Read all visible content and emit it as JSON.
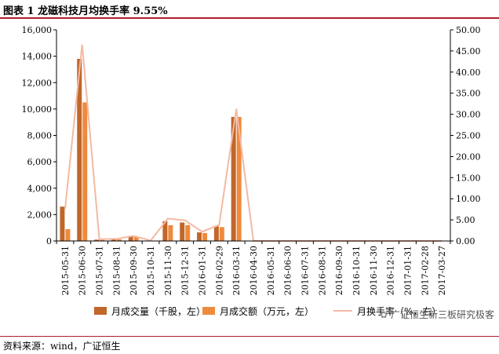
{
  "header": {
    "title": "图表 1  龙磁科技月均换手率 9.55%"
  },
  "footer": {
    "source": "资料来源：wind，广证恒生",
    "watermark": "广证恒生新三板研究极客"
  },
  "colors": {
    "vol": "#c0672a",
    "amt": "#ef8a3c",
    "rate": "#f3b9a3",
    "axis": "#000000",
    "accent": "#b01e2f"
  },
  "chart_data": {
    "type": "bar",
    "categories": [
      "2015-05-31",
      "2015-06-30",
      "2015-07-31",
      "2015-08-31",
      "2015-09-30",
      "2015-10-31",
      "2015-11-30",
      "2015-12-31",
      "2016-01-31",
      "2016-02-29",
      "2016-03-31",
      "2016-04-30",
      "2016-05-31",
      "2016-06-30",
      "2016-07-31",
      "2016-08-31",
      "2016-09-30",
      "2016-10-31",
      "2016-11-30",
      "2016-12-31",
      "2017-01-31",
      "2017-02-28",
      "2017-03-27"
    ],
    "x_tick_labels": [
      "2015-05-31",
      "2015-06-30",
      "2015-07-31",
      "2015-08-31",
      "2015-09-30",
      "2015-10-31",
      "2015-11-30",
      "2015-12-31",
      "2016-01-31",
      "2016-02-29",
      "2016-03-31",
      "2016-04-30",
      "2016-05-31",
      "2016-06-30",
      "2016-07-31",
      "2016-08-31",
      "2016-09-30",
      "2016-10-31",
      "2016-11-30",
      "2016-12-31",
      "2017-01-31",
      "2017-02-28",
      "2017-03-27"
    ],
    "series": [
      {
        "name": "月成交量（千股，左）",
        "type": "bar",
        "axis": "left",
        "values": [
          2600,
          13800,
          100,
          150,
          350,
          20,
          1500,
          1400,
          650,
          1150,
          9400,
          0,
          0,
          0,
          0,
          0,
          0,
          0,
          0,
          0,
          0,
          0,
          0
        ]
      },
      {
        "name": "月成交额（万元，左）",
        "type": "bar",
        "axis": "left",
        "values": [
          900,
          10500,
          80,
          120,
          300,
          15,
          1200,
          1200,
          600,
          1050,
          9400,
          0,
          0,
          0,
          0,
          0,
          0,
          0,
          0,
          0,
          0,
          0,
          0
        ]
      },
      {
        "name": "月换手率（%，右）",
        "type": "line",
        "axis": "right",
        "values": [
          7.5,
          46.5,
          0.4,
          0.5,
          1.2,
          0.1,
          5.3,
          4.9,
          2.2,
          3.8,
          31.3,
          0,
          0,
          0,
          0,
          0,
          0,
          0,
          0,
          0,
          0,
          0,
          0
        ]
      }
    ],
    "y_left": {
      "min": 0,
      "max": 16000,
      "ticks": [
        "0",
        "2,000",
        "4,000",
        "6,000",
        "8,000",
        "10,000",
        "12,000",
        "14,000",
        "16,000"
      ]
    },
    "y_right": {
      "min": 0,
      "max": 50,
      "ticks": [
        "0.00",
        "5.00",
        "10.00",
        "15.00",
        "20.00",
        "25.00",
        "30.00",
        "35.00",
        "40.00",
        "45.00",
        "50.00"
      ]
    },
    "legend_position": "bottom",
    "grid": false
  }
}
